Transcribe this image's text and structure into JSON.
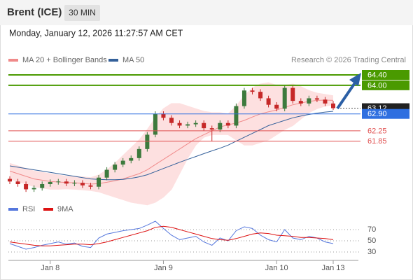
{
  "header": {
    "title": "Brent (ICE)",
    "interval": "30 MIN",
    "datetime": "Monday, January 12, 2026 11:27:57 AM CET",
    "credit": "Research © 2026 Trading Central"
  },
  "chart_data": {
    "type": "candlestick",
    "categories": [
      null,
      null,
      null,
      null,
      null,
      "Jan 8",
      null,
      null,
      null,
      null,
      null,
      null,
      null,
      null,
      null,
      null,
      null,
      null,
      null,
      "Jan 9",
      null,
      null,
      null,
      null,
      null,
      null,
      null,
      null,
      null,
      null,
      null,
      null,
      null,
      "Jan 10",
      null,
      null,
      null,
      null,
      null,
      null,
      "Jan 13"
    ],
    "candles": {
      "up_color": "#3d7a3d",
      "down_color": "#c62828",
      "open": [
        60.4,
        60.3,
        60.2,
        60.0,
        60.05,
        60.2,
        60.28,
        60.3,
        60.22,
        60.25,
        60.15,
        60.1,
        60.45,
        60.75,
        60.95,
        61.1,
        61.2,
        61.55,
        62.1,
        62.9,
        62.75,
        62.55,
        62.45,
        62.5,
        62.55,
        62.35,
        62.3,
        62.55,
        62.45,
        63.2,
        63.8,
        63.75,
        63.5,
        63.25,
        63.1,
        63.9,
        63.4,
        63.3,
        63.5,
        63.45,
        63.3
      ],
      "high": [
        60.5,
        60.4,
        60.3,
        60.15,
        60.3,
        60.38,
        60.4,
        60.4,
        60.35,
        60.35,
        60.25,
        60.55,
        60.85,
        61.05,
        61.2,
        61.3,
        61.65,
        62.2,
        63.0,
        63.0,
        62.85,
        62.65,
        62.6,
        62.65,
        62.65,
        62.45,
        62.65,
        62.65,
        63.3,
        63.9,
        63.9,
        63.85,
        63.6,
        63.35,
        64.0,
        64.0,
        63.5,
        63.6,
        63.6,
        63.55,
        63.4
      ],
      "low": [
        60.2,
        60.1,
        59.9,
        59.9,
        59.95,
        60.1,
        60.18,
        60.12,
        60.12,
        60.05,
        60.0,
        60.0,
        60.35,
        60.65,
        60.85,
        61.0,
        61.1,
        61.45,
        62.0,
        62.65,
        62.45,
        62.35,
        62.35,
        62.4,
        62.25,
        61.85,
        62.2,
        62.35,
        62.35,
        63.1,
        63.65,
        63.4,
        63.15,
        63.0,
        63.0,
        63.3,
        63.2,
        63.2,
        63.35,
        63.2,
        63.05
      ],
      "close": [
        60.3,
        60.2,
        60.0,
        60.05,
        60.2,
        60.28,
        60.3,
        60.22,
        60.25,
        60.15,
        60.1,
        60.45,
        60.75,
        60.95,
        61.1,
        61.2,
        61.55,
        62.1,
        62.9,
        62.75,
        62.55,
        62.45,
        62.5,
        62.55,
        62.35,
        62.3,
        62.55,
        62.45,
        63.2,
        63.8,
        63.75,
        63.5,
        63.25,
        63.1,
        63.9,
        63.4,
        63.3,
        63.5,
        63.45,
        63.3,
        63.12
      ]
    },
    "series": [
      {
        "name": "MA 20 + Bollinger Bands",
        "color": "#f08a8a",
        "band_color": "#fde0e0",
        "values": [
          60.7,
          60.6,
          60.5,
          60.4,
          60.35,
          60.3,
          60.28,
          60.26,
          60.25,
          60.23,
          60.2,
          60.22,
          60.27,
          60.33,
          60.4,
          60.5,
          60.6,
          60.75,
          60.95,
          61.15,
          61.35,
          61.55,
          61.75,
          61.95,
          62.1,
          62.25,
          62.4,
          62.48,
          62.55,
          62.65,
          62.78,
          62.9,
          62.98,
          63.05,
          63.15,
          63.25,
          63.32,
          63.38,
          63.42,
          63.43,
          63.42
        ],
        "upper": [
          61.0,
          60.9,
          60.8,
          60.7,
          60.65,
          60.6,
          60.55,
          60.5,
          60.5,
          60.48,
          60.45,
          60.55,
          60.75,
          61.0,
          61.3,
          61.6,
          61.9,
          62.3,
          62.75,
          63.1,
          63.3,
          63.3,
          63.2,
          63.1,
          63.0,
          62.95,
          62.95,
          62.9,
          63.2,
          63.6,
          63.9,
          64.05,
          64.1,
          64.0,
          64.0,
          64.05,
          63.95,
          63.8,
          63.7,
          63.65,
          63.6
        ],
        "lower": [
          60.4,
          60.3,
          60.2,
          60.1,
          60.05,
          60.0,
          60.0,
          60.02,
          60.0,
          59.98,
          59.95,
          59.9,
          59.8,
          59.7,
          59.6,
          59.5,
          59.45,
          59.4,
          59.5,
          59.7,
          60.0,
          60.6,
          61.2,
          61.7,
          62.0,
          62.1,
          62.1,
          62.1,
          61.9,
          61.7,
          61.7,
          61.8,
          61.9,
          62.1,
          62.3,
          62.45,
          62.7,
          62.95,
          63.1,
          63.2,
          63.25
        ]
      },
      {
        "name": "MA 50",
        "color": "#34609a",
        "values": [
          60.9,
          60.85,
          60.8,
          60.75,
          60.7,
          60.65,
          60.6,
          60.55,
          60.5,
          60.45,
          60.4,
          60.38,
          60.37,
          60.37,
          60.38,
          60.42,
          60.48,
          60.56,
          60.68,
          60.8,
          60.92,
          61.04,
          61.15,
          61.26,
          61.37,
          61.48,
          61.58,
          61.7,
          61.85,
          62.0,
          62.15,
          62.3,
          62.45,
          62.55,
          62.65,
          62.75,
          62.82,
          62.88,
          62.93,
          62.97,
          63.0
        ]
      }
    ],
    "ylim": [
      59.85,
      64.75
    ],
    "levels": [
      {
        "value": 64.4,
        "label": "64.40",
        "color": "#4a9a00",
        "boxed": true
      },
      {
        "value": 64.0,
        "label": "64.00",
        "color": "#4a9a00",
        "boxed": true
      },
      {
        "value": 63.12,
        "color": "#222222",
        "boxed": true,
        "dotted": true
      },
      {
        "value": 62.9,
        "label": "62.90",
        "color": "#2f6fe0",
        "boxed": true
      },
      {
        "value": 62.25,
        "color": "#e05050",
        "boxed": false
      },
      {
        "value": 61.85,
        "color": "#e05050",
        "boxed": false
      }
    ],
    "rsi": {
      "ylim": [
        17.5,
        92.5
      ],
      "yticks": [
        30,
        50,
        70
      ],
      "series": [
        {
          "name": "RSI",
          "color": "#5577dd",
          "values": [
            45,
            40,
            35,
            38,
            42,
            45,
            48,
            44,
            46,
            40,
            38,
            55,
            62,
            65,
            68,
            70,
            72,
            78,
            85,
            72,
            60,
            52,
            55,
            58,
            48,
            42,
            55,
            50,
            68,
            75,
            72,
            60,
            52,
            48,
            70,
            55,
            52,
            58,
            55,
            48,
            45
          ]
        },
        {
          "name": "9MA",
          "color": "#dd1111",
          "values": [
            48,
            46,
            44,
            42,
            41,
            41,
            42,
            43,
            44,
            44,
            43,
            45,
            48,
            52,
            56,
            60,
            64,
            68,
            74,
            76,
            74,
            70,
            66,
            62,
            58,
            54,
            52,
            51,
            54,
            58,
            62,
            64,
            63,
            60,
            59,
            58,
            56,
            56,
            55,
            54,
            52
          ]
        }
      ]
    }
  }
}
